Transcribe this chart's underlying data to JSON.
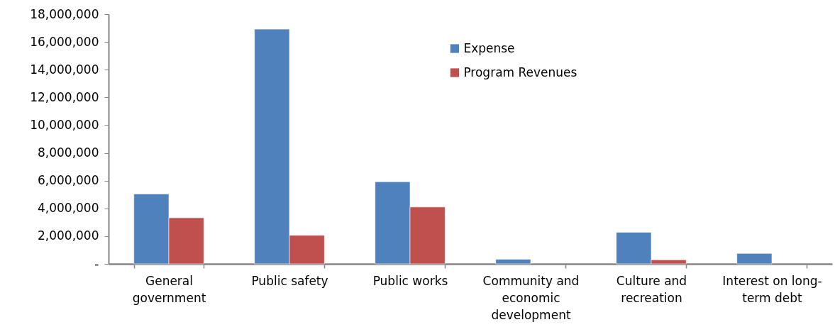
{
  "chart_data": {
    "type": "bar",
    "categories": [
      "General government",
      "Public safety",
      "Public works",
      "Community and economic development",
      "Culture and recreation",
      "Interest on long-term debt"
    ],
    "series": [
      {
        "name": "Expense",
        "color": "#4f81bd",
        "values": [
          5040000,
          16920000,
          5920000,
          330000,
          2280000,
          750000
        ]
      },
      {
        "name": "Program Revenues",
        "color": "#c0504d",
        "values": [
          3320000,
          2060000,
          4100000,
          null,
          290000,
          null
        ]
      }
    ],
    "ylim": [
      0,
      18000000
    ],
    "yticks": [
      {
        "value": 0,
        "label": "-"
      },
      {
        "value": 2000000,
        "label": "2,000,000"
      },
      {
        "value": 4000000,
        "label": "4,000,000"
      },
      {
        "value": 6000000,
        "label": "6,000,000"
      },
      {
        "value": 8000000,
        "label": "8,000,000"
      },
      {
        "value": 10000000,
        "label": "10,000,000"
      },
      {
        "value": 12000000,
        "label": "12,000,000"
      },
      {
        "value": 14000000,
        "label": "14,000,000"
      },
      {
        "value": 16000000,
        "label": "16,000,000"
      },
      {
        "value": 18000000,
        "label": "18,000,000"
      }
    ],
    "grid": false,
    "legend": "top"
  }
}
